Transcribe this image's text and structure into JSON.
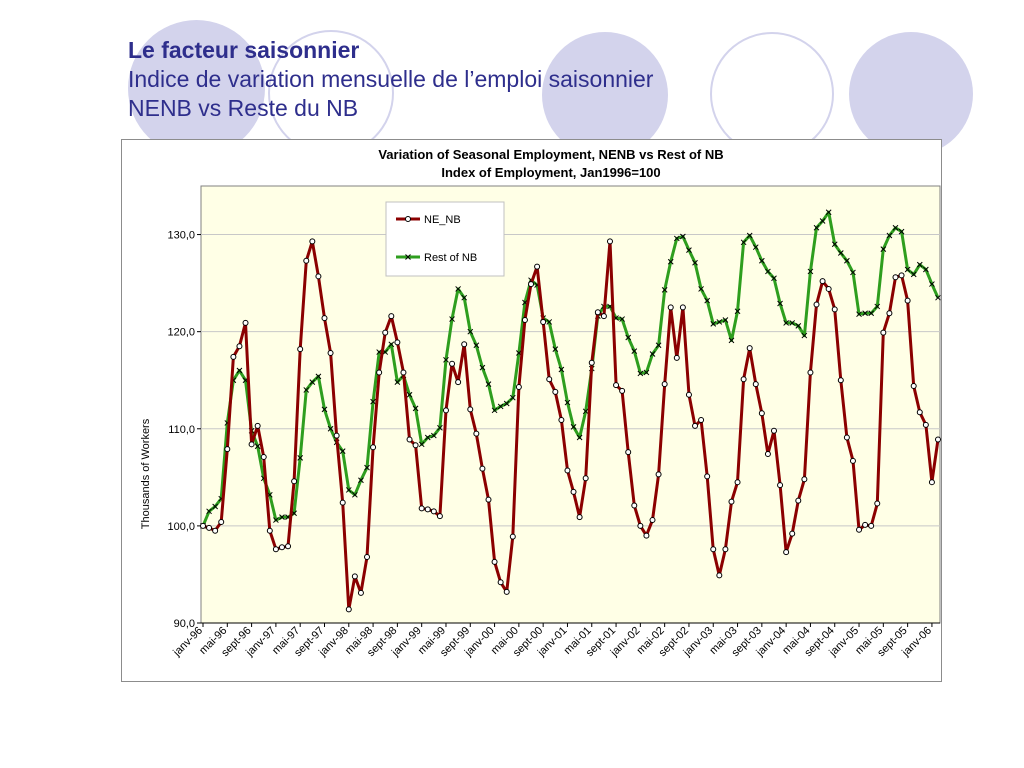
{
  "slide": {
    "title": "Le facteur saisonnier",
    "subtitle_line1": "Indice de variation mensuelle de l’emploi saisonnier",
    "subtitle_line2": "NENB vs Reste du NB"
  },
  "theme": {
    "title_color": "#2e2e8c",
    "decoration_color": "#d3d3ec",
    "plot_background": "#ffffe6",
    "ne_nb_color": "#8b0000",
    "rest_nb_color": "#2e9e1e"
  },
  "chart_data": {
    "type": "line",
    "title": "Variation of Seasonal Employment, NENB vs Rest of NB",
    "subtitle": "Index of Employment, Jan1996=100",
    "ylabel": "Thousands of Workers",
    "xlabel": "",
    "ylim": [
      90,
      135
    ],
    "yticks": [
      90,
      100,
      110,
      120,
      130
    ],
    "ytick_labels": [
      "90,0",
      "100,0",
      "110,0",
      "120,0",
      "130,0"
    ],
    "xtick_labels": [
      "janv-96",
      "mai-96",
      "sept-96",
      "janv-97",
      "mai-97",
      "sept-97",
      "janv-98",
      "mai-98",
      "sept-98",
      "janv-99",
      "mai-99",
      "sept-99",
      "janv-00",
      "mai-00",
      "sept-00",
      "janv-01",
      "mai-01",
      "sept-01",
      "janv-02",
      "mai-02",
      "sept-02",
      "janv-03",
      "mai-03",
      "sept-03",
      "janv-04",
      "mai-04",
      "sept-04",
      "janv-05",
      "mai-05",
      "sept-05",
      "janv-06"
    ],
    "grid": "horizontal",
    "legend_position": "top-center",
    "series": [
      {
        "name": "NE_NB",
        "marker": "circle",
        "values": [
          100.0,
          99.8,
          99.5,
          100.4,
          107.9,
          117.4,
          118.5,
          120.9,
          108.4,
          110.3,
          107.1,
          99.5,
          97.6,
          97.8,
          97.9,
          104.6,
          118.2,
          127.3,
          129.3,
          125.7,
          121.4,
          117.8,
          109.3,
          102.4,
          91.4,
          94.8,
          93.1,
          96.8,
          108.1,
          115.8,
          119.9,
          121.6,
          118.9,
          115.8,
          108.9,
          108.3,
          101.8,
          101.7,
          101.5,
          101.0,
          111.9,
          116.7,
          114.8,
          118.7,
          112.0,
          109.5,
          105.9,
          102.7,
          96.3,
          94.2,
          93.2,
          98.9,
          114.3,
          121.2,
          124.9,
          126.7,
          121.0,
          115.1,
          113.8,
          110.9,
          105.7,
          103.5,
          100.9,
          104.9,
          116.8,
          122.0,
          121.6,
          129.3,
          114.5,
          113.9,
          107.6,
          102.1,
          100.0,
          99.0,
          100.6,
          105.3,
          114.6,
          122.5,
          117.3,
          122.5,
          113.5,
          110.3,
          110.9,
          105.1,
          97.6,
          94.9,
          97.6,
          102.5,
          104.5,
          115.1,
          118.3,
          114.6,
          111.6,
          107.4,
          109.8,
          104.2,
          97.3,
          99.2,
          102.6,
          104.8,
          115.8,
          122.8,
          125.2,
          124.4,
          122.3,
          115.0,
          109.1,
          106.7,
          99.6,
          100.1,
          100.0,
          102.3,
          119.9,
          121.9,
          125.6,
          125.8,
          123.2,
          114.4,
          111.7,
          110.4,
          104.5,
          108.9
        ]
      },
      {
        "name": "Rest of NB",
        "marker": "x",
        "values": [
          100.0,
          101.5,
          102.0,
          102.8,
          110.6,
          115.0,
          116.0,
          115.0,
          109.8,
          108.2,
          104.9,
          103.2,
          100.6,
          100.9,
          100.9,
          101.3,
          107.0,
          114.0,
          114.8,
          115.4,
          112.0,
          110.0,
          108.6,
          107.7,
          103.7,
          103.2,
          104.7,
          106.0,
          112.8,
          117.9,
          117.9,
          118.7,
          114.8,
          115.5,
          113.5,
          112.1,
          108.4,
          109.1,
          109.3,
          110.1,
          117.1,
          121.3,
          124.4,
          123.5,
          120.0,
          118.6,
          116.3,
          114.6,
          111.9,
          112.3,
          112.6,
          113.2,
          117.8,
          123.0,
          125.3,
          124.8,
          121.4,
          121.0,
          118.2,
          116.1,
          112.7,
          110.2,
          109.1,
          111.8,
          116.2,
          121.6,
          122.6,
          122.6,
          121.4,
          121.3,
          119.4,
          118.0,
          115.7,
          115.8,
          117.7,
          118.6,
          124.3,
          127.2,
          129.6,
          129.8,
          128.4,
          127.1,
          124.4,
          123.2,
          120.8,
          121.0,
          121.2,
          119.1,
          122.1,
          129.2,
          129.9,
          128.7,
          127.3,
          126.2,
          125.5,
          122.9,
          120.9,
          120.9,
          120.6,
          119.6,
          126.2,
          130.7,
          131.4,
          132.3,
          129.0,
          128.1,
          127.3,
          126.1,
          121.8,
          121.9,
          121.9,
          122.6,
          128.5,
          129.9,
          130.7,
          130.3,
          126.4,
          125.9,
          126.9,
          126.4,
          124.9,
          123.5
        ]
      }
    ]
  }
}
